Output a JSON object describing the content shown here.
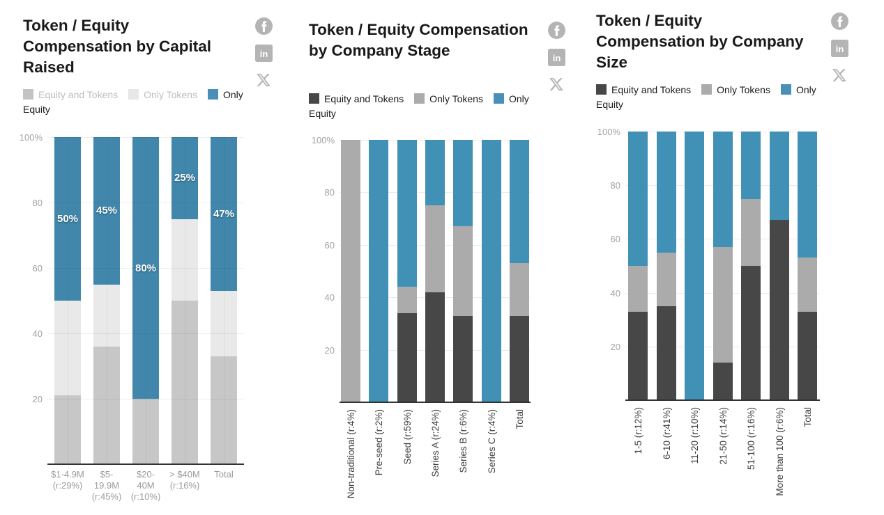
{
  "social": {
    "icon_color": "#b4b4b4",
    "icons": [
      {
        "name": "facebook",
        "label": "f"
      },
      {
        "name": "linkedin",
        "label": "in"
      },
      {
        "name": "x",
        "label": "X"
      }
    ]
  },
  "chart_data": [
    {
      "type": "bar",
      "stacked": true,
      "title": "Token / Equity Compensation by Capital Raised",
      "xlabel": "",
      "ylabel": "",
      "ylim": [
        0,
        100
      ],
      "grid": true,
      "legend_position": "top",
      "yticks": [
        {
          "value": 100,
          "label": "100%"
        },
        {
          "value": 80,
          "label": "80"
        },
        {
          "value": 60,
          "label": "60"
        },
        {
          "value": 40,
          "label": "40"
        },
        {
          "value": 20,
          "label": "20"
        }
      ],
      "categories": [
        "$1-4.9M (r:29%)",
        "$5-19.9M (r:45%)",
        "$20-40M (r:10%)",
        "> $40M (r:16%)",
        "Total"
      ],
      "series": [
        {
          "name": "Equity and Tokens",
          "color": "#c7c7c7",
          "values": [
            21,
            36,
            20,
            50,
            33
          ]
        },
        {
          "name": "Only Tokens",
          "color": "#e9e9e9",
          "values": [
            29,
            19,
            0,
            25,
            20
          ]
        },
        {
          "name": "Only Equity",
          "color": "#4187ac",
          "values": [
            50,
            45,
            80,
            25,
            47
          ],
          "labels": [
            "50%",
            "45%",
            "80%",
            "25%",
            "47%"
          ]
        }
      ],
      "legend": [
        {
          "label": "Equity and Tokens",
          "color": "#c3c3c3",
          "text_color": "#bdbdbd"
        },
        {
          "label": "Only Tokens",
          "color": "#e7e7e7",
          "text_color": "#bdbdbd"
        },
        {
          "label": "Only Equity",
          "color": "#4a8fb5",
          "text_color": "#1a1a1a"
        }
      ]
    },
    {
      "type": "bar",
      "stacked": true,
      "title": "Token / Equity Compensation by Company Stage",
      "xlabel": "",
      "ylabel": "",
      "ylim": [
        0,
        100
      ],
      "grid": true,
      "legend_position": "top",
      "yticks": [
        {
          "value": 100,
          "label": "100%"
        },
        {
          "value": 80,
          "label": "80"
        },
        {
          "value": 60,
          "label": "60"
        },
        {
          "value": 40,
          "label": "40"
        },
        {
          "value": 20,
          "label": "20"
        }
      ],
      "categories": [
        "Non-traditional (r:4%)",
        "Pre-seed (r:2%)",
        "Seed (r:59%)",
        "Series A (r:24%)",
        "Series B (r:6%)",
        "Series C (r:4%)",
        "Total"
      ],
      "series": [
        {
          "name": "Equity and Tokens",
          "color": "#474747",
          "values": [
            0,
            0,
            34,
            42,
            33,
            0,
            33
          ]
        },
        {
          "name": "Only Tokens",
          "color": "#ababab",
          "values": [
            100,
            0,
            10,
            33,
            34,
            0,
            20
          ]
        },
        {
          "name": "Only Equity",
          "color": "#4190b5",
          "values": [
            0,
            100,
            56,
            25,
            33,
            100,
            47
          ]
        }
      ],
      "legend": [
        {
          "label": "Equity and Tokens",
          "color": "#474747",
          "text_color": "#1a1a1a"
        },
        {
          "label": "Only Tokens",
          "color": "#ababab",
          "text_color": "#1a1a1a"
        },
        {
          "label": "Only Equity",
          "color": "#4a8fb5",
          "text_color": "#1a1a1a"
        }
      ]
    },
    {
      "type": "bar",
      "stacked": true,
      "title": "Token / Equity Compensation by Company Size",
      "xlabel": "",
      "ylabel": "",
      "ylim": [
        0,
        100
      ],
      "grid": true,
      "legend_position": "top",
      "yticks": [
        {
          "value": 100,
          "label": "100%"
        },
        {
          "value": 80,
          "label": "80"
        },
        {
          "value": 60,
          "label": "60"
        },
        {
          "value": 40,
          "label": "40"
        },
        {
          "value": 20,
          "label": "20"
        }
      ],
      "categories": [
        "1-5 (r:12%)",
        "6-10 (r:41%)",
        "11-20 (r:10%)",
        "21-50 (r:14%)",
        "51-100 (r:16%)",
        "More than 100 (r:6%)",
        "Total"
      ],
      "series": [
        {
          "name": "Equity and Tokens",
          "color": "#474747",
          "values": [
            33,
            35,
            0,
            14,
            50,
            67,
            33
          ]
        },
        {
          "name": "Only Tokens",
          "color": "#ababab",
          "values": [
            17,
            20,
            0,
            43,
            25,
            0,
            20
          ]
        },
        {
          "name": "Only Equity",
          "color": "#4190b5",
          "values": [
            50,
            45,
            100,
            43,
            25,
            33,
            47
          ]
        }
      ],
      "legend": [
        {
          "label": "Equity and Tokens",
          "color": "#474747",
          "text_color": "#1a1a1a"
        },
        {
          "label": "Only Tokens",
          "color": "#ababab",
          "text_color": "#1a1a1a"
        },
        {
          "label": "Only Equity",
          "color": "#4a8fb5",
          "text_color": "#1a1a1a"
        }
      ]
    }
  ]
}
